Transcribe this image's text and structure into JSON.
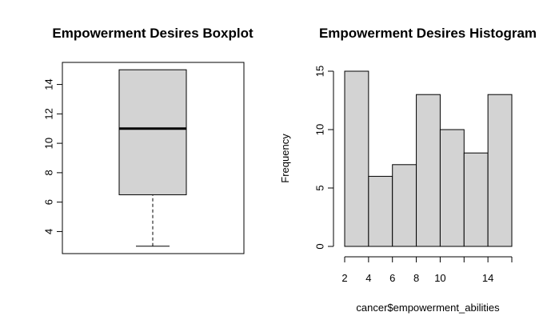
{
  "colors": {
    "fill": "#d3d3d3",
    "stroke": "#000000",
    "background": "#ffffff"
  },
  "chart_data": [
    {
      "type": "box",
      "title": "Empowerment Desires Boxplot",
      "xlabel": "",
      "ylabel": "",
      "ylim": [
        2.5,
        15.5
      ],
      "yticks": [
        4,
        6,
        8,
        10,
        12,
        14
      ],
      "box": {
        "whisker_low": 3,
        "q1": 6.5,
        "median": 11,
        "q3": 15,
        "whisker_high": 15
      },
      "grid": false
    },
    {
      "type": "bar",
      "title": "Empowerment Desires Histogram",
      "xlabel": "cancer$empowerment_abilities",
      "ylabel": "Frequency",
      "bins": [
        [
          2,
          4
        ],
        [
          4,
          6
        ],
        [
          6,
          8
        ],
        [
          8,
          10
        ],
        [
          10,
          12
        ],
        [
          12,
          14
        ],
        [
          14,
          16
        ]
      ],
      "values": [
        15,
        6,
        7,
        13,
        10,
        8,
        13
      ],
      "xticks": [
        2,
        4,
        6,
        8,
        10,
        14
      ],
      "xlim": [
        2,
        16
      ],
      "yticks": [
        0,
        5,
        10,
        15
      ],
      "ylim": [
        0,
        15
      ],
      "grid": false
    }
  ]
}
